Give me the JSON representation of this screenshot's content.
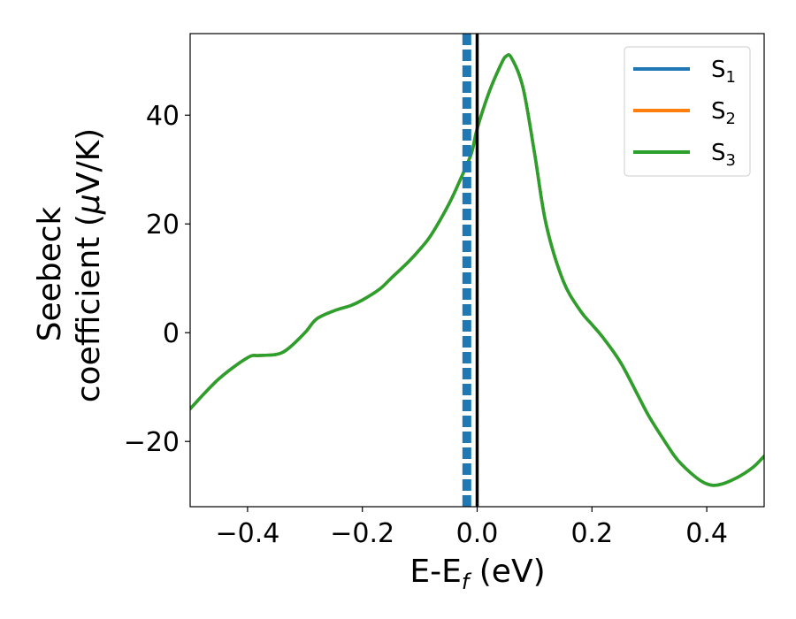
{
  "chart_data": {
    "type": "line",
    "xlabel": "E-E",
    "xlabel_sub": "f",
    "xlabel_unit": " (eV)",
    "ylabel_line1": "Seebeck",
    "ylabel_line2_prefix": "coefficient  (",
    "ylabel_mu": "μ",
    "ylabel_line2_suffix": "V/K)",
    "xlim": [
      -0.5,
      0.5
    ],
    "ylim": [
      -32,
      55
    ],
    "x_ticks": [
      -0.4,
      -0.2,
      0.0,
      0.2,
      0.4
    ],
    "x_tick_labels": [
      "−0.4",
      "−0.2",
      "0.0",
      "0.2",
      "0.4"
    ],
    "y_ticks": [
      -20,
      0,
      20,
      40
    ],
    "y_tick_labels": [
      "−20",
      "0",
      "20",
      "40"
    ],
    "grid": false,
    "legend": {
      "position": "top-right",
      "entries": [
        {
          "base": "S",
          "sub": "1"
        },
        {
          "base": "S",
          "sub": "2"
        },
        {
          "base": "S",
          "sub": "3"
        }
      ]
    },
    "series": [
      {
        "color": "#1f77b4",
        "x": [
          -0.5,
          -0.45,
          -0.4,
          -0.38,
          -0.35,
          -0.33,
          -0.3,
          -0.28,
          -0.25,
          -0.22,
          -0.2,
          -0.17,
          -0.15,
          -0.12,
          -0.1,
          -0.08,
          -0.05,
          -0.03,
          -0.01,
          0.0,
          0.02,
          0.04,
          0.05,
          0.06,
          0.08,
          0.1,
          0.12,
          0.15,
          0.18,
          0.2,
          0.22,
          0.25,
          0.28,
          0.3,
          0.33,
          0.35,
          0.38,
          0.4,
          0.42,
          0.45,
          0.48,
          0.5
        ],
        "y": [
          -14,
          -8.5,
          -4.6,
          -4.2,
          -4,
          -3,
          0,
          2.5,
          4,
          5,
          6,
          8,
          10,
          13,
          15.3,
          18,
          23.5,
          28,
          33,
          37.5,
          44,
          49,
          50.8,
          50.5,
          45,
          33,
          20,
          9.5,
          4,
          1.5,
          -1,
          -5.5,
          -11.5,
          -15.5,
          -20.5,
          -23.5,
          -26.5,
          -27.8,
          -28,
          -26.8,
          -24.8,
          -22.7
        ]
      },
      {
        "color": "#ff7f0e",
        "x": [
          -0.5,
          -0.45,
          -0.4,
          -0.38,
          -0.35,
          -0.33,
          -0.3,
          -0.28,
          -0.25,
          -0.22,
          -0.2,
          -0.17,
          -0.15,
          -0.12,
          -0.1,
          -0.08,
          -0.05,
          -0.03,
          -0.01,
          0.0,
          0.02,
          0.04,
          0.05,
          0.06,
          0.08,
          0.1,
          0.12,
          0.15,
          0.18,
          0.2,
          0.22,
          0.25,
          0.28,
          0.3,
          0.33,
          0.35,
          0.38,
          0.4,
          0.42,
          0.45,
          0.48,
          0.5
        ],
        "y": [
          -14,
          -8.5,
          -4.6,
          -4.2,
          -4,
          -3,
          0,
          2.5,
          4,
          5,
          6,
          8,
          10,
          13,
          15.3,
          18,
          23.5,
          28,
          33,
          37.5,
          44,
          49,
          50.8,
          50.5,
          45,
          33,
          20,
          9.5,
          4,
          1.5,
          -1,
          -5.5,
          -11.5,
          -15.5,
          -20.5,
          -23.5,
          -26.5,
          -27.8,
          -28,
          -26.8,
          -24.8,
          -22.7
        ]
      },
      {
        "color": "#2ca02c",
        "x": [
          -0.5,
          -0.45,
          -0.4,
          -0.38,
          -0.35,
          -0.33,
          -0.3,
          -0.28,
          -0.25,
          -0.22,
          -0.2,
          -0.17,
          -0.15,
          -0.12,
          -0.1,
          -0.08,
          -0.05,
          -0.03,
          -0.01,
          0.0,
          0.02,
          0.04,
          0.05,
          0.06,
          0.08,
          0.1,
          0.12,
          0.15,
          0.18,
          0.2,
          0.22,
          0.25,
          0.28,
          0.3,
          0.33,
          0.35,
          0.38,
          0.4,
          0.42,
          0.45,
          0.48,
          0.5
        ],
        "y": [
          -14,
          -8.5,
          -4.6,
          -4.2,
          -4,
          -3,
          0,
          2.5,
          4,
          5,
          6,
          8,
          10,
          13,
          15.3,
          18,
          23.5,
          28,
          33,
          37.5,
          44,
          49,
          50.8,
          50.5,
          45,
          33,
          20,
          9.5,
          4,
          1.5,
          -1,
          -5.5,
          -11.5,
          -15.5,
          -20.5,
          -23.5,
          -26.5,
          -27.8,
          -28,
          -26.8,
          -24.8,
          -22.7
        ]
      }
    ],
    "vertical_lines": [
      {
        "x": 0.0,
        "style": "solid",
        "color": "#000000"
      },
      {
        "x": -0.018,
        "style": "dashed",
        "color": "#1f77b4"
      }
    ]
  }
}
